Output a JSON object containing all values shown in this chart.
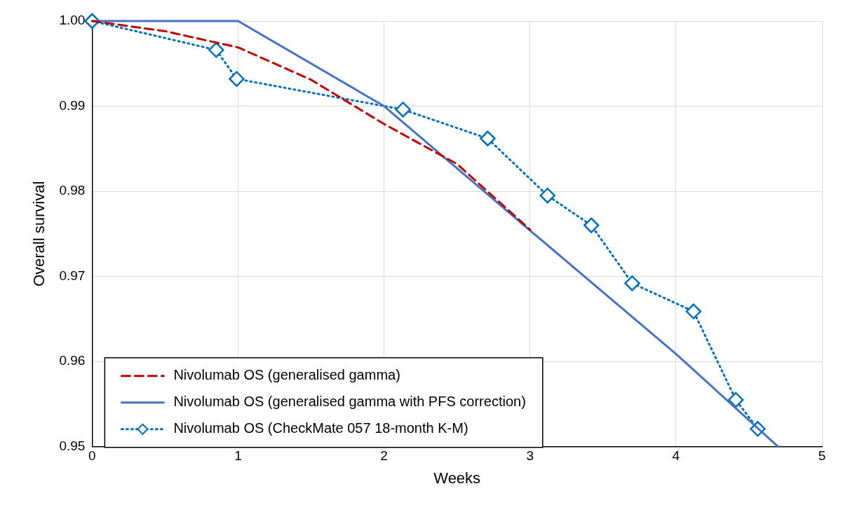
{
  "chart_data": {
    "type": "line",
    "xlabel": "Weeks",
    "ylabel": "Overall survival",
    "xlim": [
      0,
      5
    ],
    "xticks": [
      0,
      1,
      2,
      3,
      4,
      5
    ],
    "ylim": [
      0.95,
      1
    ],
    "yticks": [
      0.95,
      0.96,
      0.97,
      0.98,
      0.99,
      {
        "value": 1,
        "label": "1.00"
      }
    ],
    "grid": true,
    "legend": "bottom left",
    "series": [
      {
        "name": "Nivolumab OS (generalised gamma)",
        "color": "#c00000",
        "line_style": "dashed",
        "marker": "none",
        "x": [
          0,
          0.5,
          1,
          1.5,
          2,
          2.5,
          3
        ],
        "values": [
          1,
          0.9988,
          0.9969,
          0.9931,
          0.9879,
          0.9832,
          0.9755
        ]
      },
      {
        "name": "Nivolumab OS (generalised gamma with PFS correction)",
        "color": "#4472c4",
        "line_style": "solid",
        "marker": "none",
        "x": [
          0,
          1,
          2,
          3,
          4,
          4.7
        ],
        "values": [
          1,
          1,
          0.99,
          0.9754,
          0.9609,
          0.95
        ]
      },
      {
        "name": "Nivolumab OS (CheckMate 057 18-month K-M)",
        "color": "#0070c0",
        "line_style": "dotted",
        "marker": "diamond",
        "x": [
          0,
          0.85,
          0.99,
          2.13,
          2.71,
          3.12,
          3.42,
          3.7,
          4.12,
          4.41,
          4.56
        ],
        "values": [
          1,
          0.9966,
          0.9932,
          0.9896,
          0.9862,
          0.9795,
          0.976,
          0.9692,
          0.9659,
          0.9555,
          0.9521
        ]
      }
    ]
  }
}
